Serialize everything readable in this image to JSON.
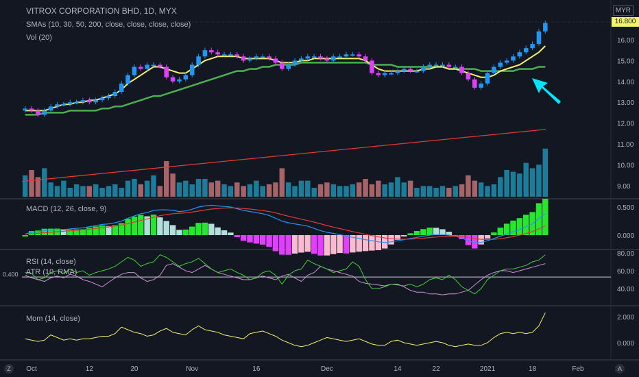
{
  "header": {
    "title": "VITROX CORPORATION BHD, 1D, MYX",
    "currency": "MYR",
    "sma_label": "SMAs (10, 30, 50, 200, close, close, close, close)",
    "vol_label": "Vol (20)",
    "macd_label": "MACD (12, 26, close, 9)",
    "rsi_label": "RSI (14, close)",
    "atr_label": "ATR (10, RMA)",
    "mom_label": "Mom (14, close)",
    "last_price": "16.800"
  },
  "chart_data": {
    "type": "line",
    "x_ticks": [
      "Oct",
      "12",
      "20",
      "Nov",
      "16",
      "Dec",
      "14",
      "22",
      "2021",
      "18",
      "Feb"
    ],
    "price_axis": [
      "16.00",
      "15.00",
      "14.00",
      "13.00",
      "12.00",
      "11.00",
      "10.00",
      "9.00"
    ],
    "macd_axis": [
      "0.500",
      "0.000"
    ],
    "rsi_axis": [
      "80.00",
      "60.00",
      "40.00"
    ],
    "atr_left_tick": "0.400",
    "mom_axis": [
      "2.000",
      "0.000"
    ],
    "candles_close": [
      12.7,
      12.6,
      12.4,
      12.6,
      12.8,
      12.9,
      12.9,
      13.0,
      13.0,
      13.1,
      13.0,
      13.1,
      13.2,
      13.3,
      13.5,
      13.9,
      14.3,
      14.7,
      14.6,
      14.8,
      14.8,
      14.7,
      14.2,
      14.0,
      14.1,
      14.3,
      14.8,
      15.2,
      15.5,
      15.4,
      15.3,
      15.3,
      15.3,
      15.2,
      15.0,
      15.1,
      15.2,
      15.2,
      15.1,
      14.9,
      14.6,
      14.8,
      15.0,
      15.1,
      15.2,
      15.2,
      15.1,
      15.0,
      15.2,
      15.2,
      15.3,
      15.3,
      15.2,
      15.0,
      14.4,
      14.3,
      14.4,
      14.4,
      14.5,
      14.6,
      14.5,
      14.5,
      14.7,
      14.8,
      14.8,
      14.8,
      14.7,
      14.7,
      14.4,
      14.1,
      13.7,
      13.9,
      14.4,
      14.7,
      14.9,
      15.0,
      15.2,
      15.4,
      15.6,
      15.8,
      16.4,
      16.8
    ],
    "ema_yellow": [
      12.6,
      12.6,
      12.6,
      12.6,
      12.7,
      12.8,
      12.9,
      12.9,
      13.0,
      13.0,
      13.1,
      13.1,
      13.2,
      13.3,
      13.4,
      13.6,
      13.9,
      14.1,
      14.3,
      14.5,
      14.7,
      14.7,
      14.6,
      14.5,
      14.4,
      14.4,
      14.6,
      14.8,
      15.0,
      15.1,
      15.2,
      15.2,
      15.2,
      15.2,
      15.1,
      15.1,
      15.1,
      15.1,
      15.1,
      15.0,
      14.9,
      14.9,
      14.9,
      15.0,
      15.0,
      15.1,
      15.1,
      15.1,
      15.1,
      15.1,
      15.1,
      15.1,
      15.1,
      15.0,
      14.8,
      14.6,
      14.5,
      14.5,
      14.5,
      14.5,
      14.5,
      14.5,
      14.6,
      14.6,
      14.7,
      14.7,
      14.6,
      14.6,
      14.5,
      14.4,
      14.3,
      14.2,
      14.2,
      14.3,
      14.5,
      14.6,
      14.7,
      14.8,
      15.0,
      15.2,
      15.4,
      15.7
    ],
    "sma_green": [
      12.4,
      12.4,
      12.4,
      12.5,
      12.5,
      12.5,
      12.5,
      12.6,
      12.6,
      12.6,
      12.6,
      12.6,
      12.7,
      12.7,
      12.8,
      12.8,
      12.9,
      13.0,
      13.1,
      13.2,
      13.3,
      13.3,
      13.4,
      13.5,
      13.6,
      13.7,
      13.8,
      13.9,
      14.0,
      14.1,
      14.2,
      14.3,
      14.4,
      14.5,
      14.5,
      14.6,
      14.6,
      14.7,
      14.7,
      14.8,
      14.8,
      14.8,
      14.8,
      14.9,
      14.9,
      14.9,
      14.9,
      14.9,
      14.9,
      14.9,
      14.9,
      14.9,
      14.9,
      14.9,
      14.8,
      14.8,
      14.8,
      14.8,
      14.7,
      14.7,
      14.7,
      14.7,
      14.7,
      14.7,
      14.7,
      14.7,
      14.6,
      14.6,
      14.6,
      14.6,
      14.6,
      14.5,
      14.5,
      14.5,
      14.5,
      14.5,
      14.5,
      14.6,
      14.6,
      14.6,
      14.7,
      14.7
    ],
    "sma_red": [
      9.2,
      11.7
    ],
    "volume": [
      1.2,
      1.5,
      1.1,
      1.6,
      0.8,
      0.6,
      0.9,
      0.5,
      0.7,
      0.6,
      0.6,
      0.7,
      0.5,
      0.6,
      0.7,
      0.5,
      0.9,
      1.0,
      0.7,
      0.9,
      1.2,
      0.6,
      2.0,
      1.3,
      0.8,
      0.9,
      0.7,
      1.0,
      1.0,
      0.8,
      0.9,
      0.7,
      0.6,
      0.8,
      0.6,
      0.7,
      0.9,
      0.6,
      0.7,
      0.8,
      1.6,
      0.8,
      0.6,
      0.9,
      0.9,
      0.5,
      0.7,
      0.8,
      0.7,
      0.6,
      0.6,
      0.7,
      0.8,
      1.0,
      0.7,
      0.9,
      0.7,
      0.8,
      1.1,
      0.8,
      0.9,
      0.5,
      0.6,
      0.6,
      0.5,
      0.6,
      0.5,
      0.6,
      0.7,
      1.2,
      0.9,
      0.8,
      0.6,
      0.7,
      1.1,
      1.5,
      1.4,
      1.3,
      1.9,
      1.6,
      1.8,
      2.7
    ],
    "macd": [
      0.02,
      0.05,
      0.06,
      0.08,
      0.09,
      0.1,
      0.1,
      0.11,
      0.12,
      0.13,
      0.15,
      0.17,
      0.19,
      0.2,
      0.22,
      0.25,
      0.3,
      0.34,
      0.38,
      0.4,
      0.44,
      0.45,
      0.45,
      0.44,
      0.42,
      0.43,
      0.46,
      0.5,
      0.52,
      0.53,
      0.52,
      0.51,
      0.5,
      0.47,
      0.44,
      0.42,
      0.4,
      0.38,
      0.35,
      0.3,
      0.25,
      0.22,
      0.2,
      0.18,
      0.16,
      0.12,
      0.08,
      0.05,
      0.03,
      0.01,
      -0.02,
      -0.04,
      -0.06,
      -0.08,
      -0.1,
      -0.12,
      -0.13,
      -0.12,
      -0.1,
      -0.08,
      -0.06,
      -0.04,
      -0.02,
      0.0,
      0.01,
      0.01,
      0.0,
      -0.02,
      -0.05,
      -0.1,
      -0.14,
      -0.13,
      -0.1,
      -0.06,
      -0.02,
      0.02,
      0.06,
      0.1,
      0.15,
      0.2,
      0.3,
      0.38
    ],
    "rsi": [
      58,
      57,
      50,
      52,
      58,
      60,
      57,
      62,
      58,
      60,
      55,
      58,
      60,
      62,
      65,
      70,
      75,
      72,
      65,
      68,
      70,
      78,
      75,
      70,
      65,
      68,
      70,
      74,
      68,
      62,
      58,
      60,
      62,
      58,
      55,
      50,
      52,
      58,
      60,
      55,
      45,
      55,
      60,
      62,
      72,
      68,
      65,
      62,
      58,
      60,
      62,
      70,
      65,
      50,
      40,
      40,
      42,
      45,
      44,
      43,
      45,
      42,
      45,
      50,
      52,
      50,
      55,
      50,
      42,
      38,
      34,
      40,
      50,
      55,
      60,
      62,
      62,
      64,
      66,
      70,
      72,
      78
    ],
    "atr": [
      55,
      52,
      50,
      48,
      52,
      54,
      52,
      56,
      54,
      50,
      48,
      45,
      42,
      47,
      52,
      56,
      58,
      58,
      52,
      48,
      50,
      55,
      66,
      68,
      64,
      60,
      58,
      62,
      66,
      62,
      58,
      56,
      54,
      52,
      50,
      50,
      52,
      54,
      52,
      50,
      54,
      56,
      52,
      48,
      55,
      58,
      65,
      62,
      60,
      58,
      56,
      54,
      48,
      46,
      45,
      44,
      43,
      45,
      45,
      42,
      38,
      36,
      36,
      34,
      34,
      33,
      34,
      34,
      36,
      38,
      44,
      50,
      55,
      58,
      60,
      60,
      58,
      60,
      62,
      64,
      66,
      68
    ],
    "mom": [
      0.3,
      0.2,
      0.1,
      0.2,
      0.6,
      0.4,
      0.2,
      0.3,
      0.2,
      0.3,
      0.3,
      0.4,
      0.5,
      0.5,
      0.7,
      1.2,
      1.0,
      0.8,
      0.7,
      0.5,
      0.6,
      0.9,
      1.1,
      0.8,
      0.7,
      0.6,
      1.0,
      1.3,
      1.0,
      0.9,
      0.8,
      0.6,
      0.5,
      0.4,
      0.3,
      0.7,
      0.8,
      0.9,
      0.7,
      0.5,
      0.2,
      0.0,
      -0.2,
      -0.3,
      -0.2,
      0.0,
      0.2,
      0.4,
      0.3,
      0.2,
      0.1,
      0.2,
      0.3,
      0.1,
      -0.1,
      -0.2,
      -0.2,
      0.1,
      0.2,
      0.0,
      -0.1,
      -0.2,
      -0.1,
      0.0,
      0.1,
      0.0,
      -0.2,
      -0.3,
      -0.2,
      -0.1,
      -0.2,
      -0.2,
      0.0,
      0.4,
      0.7,
      0.8,
      0.7,
      0.8,
      0.7,
      0.8,
      1.3,
      2.3
    ]
  },
  "colors": {
    "background": "#131722",
    "up_candle": "#2196f3",
    "down_candle": "#e040fb",
    "ema": "#f5f36a",
    "sma_green": "#4caf50",
    "sma_red": "#e53935",
    "arrow": "#00e5ff"
  }
}
